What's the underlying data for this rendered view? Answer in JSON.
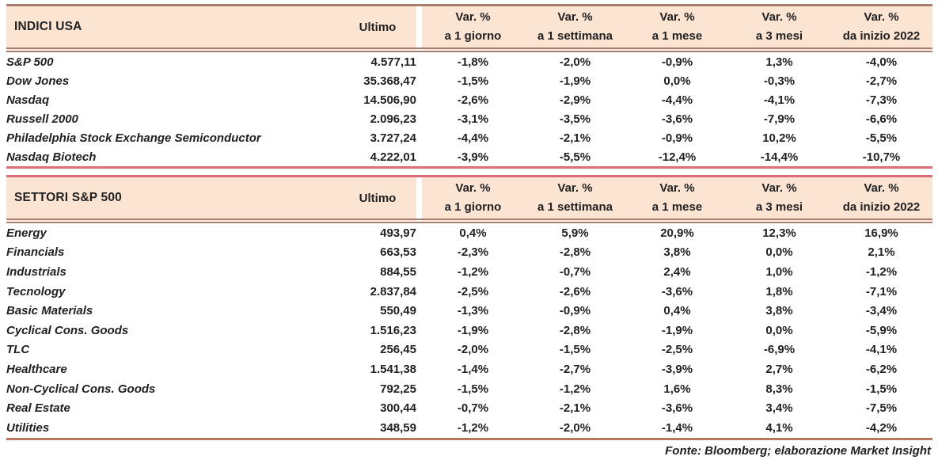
{
  "colors": {
    "header_bg": "#fbe4d2",
    "border_brown": "#a87c6e",
    "border_pink": "#d96e76",
    "border_rust": "#b5785f",
    "text": "#212121"
  },
  "footer": "Fonte: Bloomberg; elaborazione Market Insight",
  "tables": [
    {
      "title": "INDICI USA",
      "ultimo_header": "Ultimo",
      "var_headers": [
        {
          "line1": "Var. %",
          "line2": "a 1 giorno"
        },
        {
          "line1": "Var. %",
          "line2": "a 1 settimana"
        },
        {
          "line1": "Var. %",
          "line2": "a 1 mese"
        },
        {
          "line1": "Var. %",
          "line2": "a 3 mesi"
        },
        {
          "line1": "Var. %",
          "line2": "da inizio 2022"
        }
      ],
      "rows": [
        {
          "name": "S&P 500",
          "ultimo": "4.577,11",
          "values": [
            "-1,8%",
            "-2,0%",
            "-0,9%",
            "1,3%",
            "-4,0%"
          ]
        },
        {
          "name": "Dow Jones",
          "ultimo": "35.368,47",
          "values": [
            "-1,5%",
            "-1,9%",
            "0,0%",
            "-0,3%",
            "-2,7%"
          ]
        },
        {
          "name": "Nasdaq",
          "ultimo": "14.506,90",
          "values": [
            "-2,6%",
            "-2,9%",
            "-4,4%",
            "-4,1%",
            "-7,3%"
          ]
        },
        {
          "name": "Russell 2000",
          "ultimo": "2.096,23",
          "values": [
            "-3,1%",
            "-3,5%",
            "-3,6%",
            "-7,9%",
            "-6,6%"
          ]
        },
        {
          "name": "Philadelphia Stock Exchange Semiconductor",
          "ultimo": "3.727,24",
          "values": [
            "-4,4%",
            "-2,1%",
            "-0,9%",
            "10,2%",
            "-5,5%"
          ]
        },
        {
          "name": "Nasdaq Biotech",
          "ultimo": "4.222,01",
          "values": [
            "-3,9%",
            "-5,5%",
            "-12,4%",
            "-14,4%",
            "-10,7%"
          ]
        }
      ]
    },
    {
      "title": "SETTORI S&P 500",
      "ultimo_header": "Ultimo",
      "var_headers": [
        {
          "line1": "Var. %",
          "line2": "a 1 giorno"
        },
        {
          "line1": "Var. %",
          "line2": "a 1 settimana"
        },
        {
          "line1": "Var. %",
          "line2": "a 1 mese"
        },
        {
          "line1": "Var. %",
          "line2": "a 3 mesi"
        },
        {
          "line1": "Var. %",
          "line2": "da inizio 2022"
        }
      ],
      "rows": [
        {
          "name": "Energy",
          "ultimo": "493,97",
          "values": [
            "0,4%",
            "5,9%",
            "20,9%",
            "12,3%",
            "16,9%"
          ]
        },
        {
          "name": "Financials",
          "ultimo": "663,53",
          "values": [
            "-2,3%",
            "-2,8%",
            "3,8%",
            "0,0%",
            "2,1%"
          ]
        },
        {
          "name": "Industrials",
          "ultimo": "884,55",
          "values": [
            "-1,2%",
            "-0,7%",
            "2,4%",
            "1,0%",
            "-1,2%"
          ]
        },
        {
          "name": "Tecnology",
          "ultimo": "2.837,84",
          "values": [
            "-2,5%",
            "-2,6%",
            "-3,6%",
            "1,8%",
            "-7,1%"
          ]
        },
        {
          "name": "Basic Materials",
          "ultimo": "550,49",
          "values": [
            "-1,3%",
            "-0,9%",
            "0,4%",
            "3,8%",
            "-3,4%"
          ]
        },
        {
          "name": "Cyclical Cons. Goods",
          "ultimo": "1.516,23",
          "values": [
            "-1,9%",
            "-2,8%",
            "-1,9%",
            "0,0%",
            "-5,9%"
          ]
        },
        {
          "name": "TLC",
          "ultimo": "256,45",
          "values": [
            "-2,0%",
            "-1,5%",
            "-2,5%",
            "-6,9%",
            "-4,1%"
          ]
        },
        {
          "name": "Healthcare",
          "ultimo": "1.541,38",
          "values": [
            "-1,4%",
            "-2,7%",
            "-3,9%",
            "2,7%",
            "-6,2%"
          ]
        },
        {
          "name": "Non-Cyclical Cons. Goods",
          "ultimo": "792,25",
          "values": [
            "-1,5%",
            "-1,2%",
            "1,6%",
            "8,3%",
            "-1,5%"
          ]
        },
        {
          "name": "Real Estate",
          "ultimo": "300,44",
          "values": [
            "-0,7%",
            "-2,1%",
            "-3,6%",
            "3,4%",
            "-7,5%"
          ]
        },
        {
          "name": "Utilities",
          "ultimo": "348,59",
          "values": [
            "-1,2%",
            "-2,0%",
            "-1,4%",
            "4,1%",
            "-4,2%"
          ]
        }
      ]
    }
  ]
}
